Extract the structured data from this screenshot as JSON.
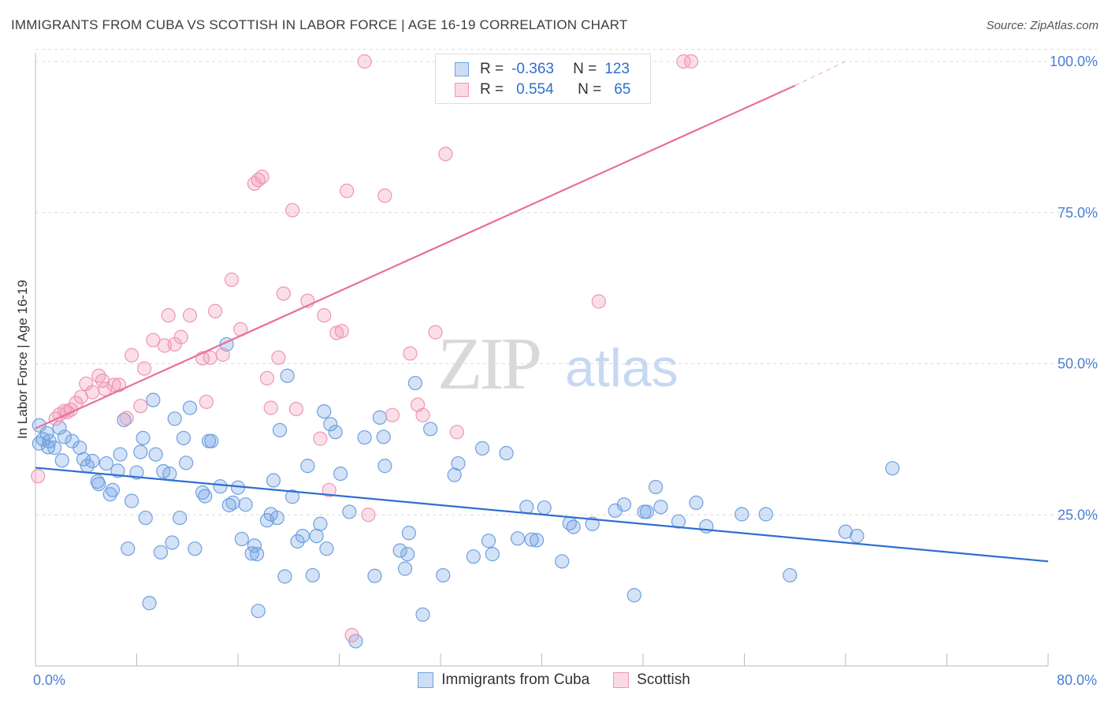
{
  "title": "IMMIGRANTS FROM CUBA VS SCOTTISH IN LABOR FORCE | AGE 16-19 CORRELATION CHART",
  "source": "Source: ZipAtlas.com",
  "watermark": {
    "zip": "ZIP",
    "atlas": "atlas"
  },
  "legend_top": {
    "rows": [
      {
        "r_label": "R =",
        "r_value": "-0.363",
        "n_label": "N =",
        "n_value": "123",
        "color": "#6fa0e0"
      },
      {
        "r_label": "R =",
        "r_value": "0.554",
        "n_label": "N =",
        "n_value": "65",
        "color": "#f095b5"
      }
    ]
  },
  "chart_data": {
    "type": "scatter",
    "xlabel": "",
    "ylabel": "In Labor Force | Age 16-19",
    "xlim": [
      0,
      80
    ],
    "ylim": [
      0,
      105
    ],
    "x_tick_labels": [
      "0.0%",
      "80.0%"
    ],
    "y_tick_labels": [
      "25.0%",
      "50.0%",
      "75.0%",
      "100.0%"
    ],
    "y_ticks": [
      25,
      50,
      75,
      100
    ],
    "grid": true,
    "legend_placement": "bottom",
    "series": [
      {
        "name": "Immigrants from Cuba",
        "color": "#6fa0e0",
        "fill": "rgba(110,160,230,0.30)",
        "trend": {
          "x0": 0,
          "y0": 32.8,
          "x1": 80,
          "y1": 17.3,
          "color": "#2f6fd0"
        },
        "points": [
          [
            0.3,
            36.8
          ],
          [
            0.6,
            37.5
          ],
          [
            0.9,
            38.5
          ],
          [
            1.1,
            37.2
          ],
          [
            1.5,
            36.1
          ],
          [
            1.9,
            39.4
          ],
          [
            2.3,
            37.9
          ],
          [
            2.9,
            37.2
          ],
          [
            3.5,
            36.1
          ],
          [
            3.8,
            34.2
          ],
          [
            4.1,
            33.1
          ],
          [
            4.5,
            33.9
          ],
          [
            4.9,
            30.5
          ],
          [
            5.0,
            30.1
          ],
          [
            5.6,
            33.5
          ],
          [
            5.9,
            28.4
          ],
          [
            6.1,
            29.1
          ],
          [
            6.5,
            32.3
          ],
          [
            6.7,
            35.0
          ],
          [
            7.0,
            40.7
          ],
          [
            7.3,
            19.4
          ],
          [
            7.6,
            27.3
          ],
          [
            8.0,
            32.0
          ],
          [
            8.3,
            35.4
          ],
          [
            8.5,
            37.7
          ],
          [
            8.7,
            24.5
          ],
          [
            9.0,
            10.4
          ],
          [
            9.3,
            44.0
          ],
          [
            9.5,
            35.0
          ],
          [
            9.9,
            18.8
          ],
          [
            10.1,
            32.2
          ],
          [
            10.6,
            31.8
          ],
          [
            10.8,
            20.4
          ],
          [
            11.0,
            40.9
          ],
          [
            11.4,
            24.5
          ],
          [
            11.7,
            37.7
          ],
          [
            11.9,
            33.6
          ],
          [
            12.2,
            42.7
          ],
          [
            12.6,
            19.4
          ],
          [
            13.2,
            28.7
          ],
          [
            13.4,
            28.1
          ],
          [
            13.7,
            37.2
          ],
          [
            13.9,
            37.2
          ],
          [
            14.6,
            29.7
          ],
          [
            15.1,
            53.2
          ],
          [
            15.3,
            26.6
          ],
          [
            15.6,
            27.0
          ],
          [
            16.0,
            29.5
          ],
          [
            16.3,
            21.0
          ],
          [
            16.6,
            26.7
          ],
          [
            17.1,
            18.6
          ],
          [
            17.3,
            19.9
          ],
          [
            17.5,
            18.5
          ],
          [
            17.6,
            9.1
          ],
          [
            18.3,
            24.1
          ],
          [
            18.6,
            25.1
          ],
          [
            18.8,
            30.7
          ],
          [
            19.1,
            24.5
          ],
          [
            19.3,
            39.0
          ],
          [
            19.7,
            14.8
          ],
          [
            19.9,
            48.0
          ],
          [
            20.3,
            28.0
          ],
          [
            20.7,
            20.6
          ],
          [
            21.1,
            21.5
          ],
          [
            21.5,
            33.1
          ],
          [
            21.9,
            15.0
          ],
          [
            22.2,
            21.5
          ],
          [
            22.5,
            23.5
          ],
          [
            22.8,
            42.1
          ],
          [
            23.0,
            19.4
          ],
          [
            23.3,
            40.0
          ],
          [
            23.7,
            38.7
          ],
          [
            24.1,
            31.8
          ],
          [
            24.8,
            25.5
          ],
          [
            25.3,
            4.1
          ],
          [
            26.0,
            37.8
          ],
          [
            26.8,
            14.9
          ],
          [
            27.2,
            41.1
          ],
          [
            27.5,
            37.9
          ],
          [
            27.6,
            33.1
          ],
          [
            28.8,
            19.1
          ],
          [
            29.2,
            16.1
          ],
          [
            29.4,
            18.5
          ],
          [
            29.5,
            22.0
          ],
          [
            30.0,
            46.8
          ],
          [
            30.6,
            8.5
          ],
          [
            31.2,
            39.2
          ],
          [
            32.2,
            15.0
          ],
          [
            33.1,
            31.6
          ],
          [
            33.4,
            33.5
          ],
          [
            34.6,
            18.1
          ],
          [
            35.3,
            36.0
          ],
          [
            35.8,
            20.7
          ],
          [
            36.1,
            18.5
          ],
          [
            37.2,
            35.2
          ],
          [
            38.1,
            21.1
          ],
          [
            38.8,
            26.3
          ],
          [
            39.2,
            20.9
          ],
          [
            39.6,
            20.8
          ],
          [
            40.2,
            26.2
          ],
          [
            41.6,
            17.3
          ],
          [
            42.2,
            23.6
          ],
          [
            42.5,
            23.0
          ],
          [
            44.0,
            23.5
          ],
          [
            45.8,
            25.7
          ],
          [
            46.5,
            26.7
          ],
          [
            47.3,
            11.7
          ],
          [
            48.1,
            25.5
          ],
          [
            48.3,
            25.5
          ],
          [
            49.0,
            29.6
          ],
          [
            49.4,
            26.3
          ],
          [
            50.8,
            23.9
          ],
          [
            52.2,
            27.0
          ],
          [
            53.0,
            23.1
          ],
          [
            55.8,
            25.1
          ],
          [
            57.7,
            25.1
          ],
          [
            59.6,
            15.0
          ],
          [
            64.0,
            22.2
          ],
          [
            64.9,
            21.5
          ],
          [
            67.7,
            32.7
          ],
          [
            0.3,
            39.8
          ],
          [
            1.0,
            36.2
          ],
          [
            2.1,
            34.0
          ]
        ]
      },
      {
        "name": "Scottish",
        "color": "#f095b5",
        "fill": "rgba(240,150,180,0.30)",
        "trend": {
          "x0": 0,
          "y0": 39.3,
          "x1": 60.0,
          "y1": 96.0,
          "color": "#e8709a"
        },
        "trend_dashed": {
          "x0": 60.0,
          "y0": 96.0,
          "x1": 64.0,
          "y1": 100.0
        },
        "points": [
          [
            0.2,
            31.4
          ],
          [
            1.6,
            40.9
          ],
          [
            1.9,
            41.6
          ],
          [
            2.3,
            42.2
          ],
          [
            2.5,
            42.0
          ],
          [
            2.8,
            42.4
          ],
          [
            3.2,
            43.5
          ],
          [
            3.6,
            44.5
          ],
          [
            4.0,
            46.7
          ],
          [
            4.5,
            45.3
          ],
          [
            5.0,
            48.0
          ],
          [
            5.3,
            47.2
          ],
          [
            5.5,
            45.8
          ],
          [
            6.2,
            46.5
          ],
          [
            6.6,
            46.5
          ],
          [
            7.2,
            41.0
          ],
          [
            7.6,
            51.4
          ],
          [
            8.3,
            43.0
          ],
          [
            8.6,
            49.2
          ],
          [
            9.3,
            53.9
          ],
          [
            10.2,
            53.0
          ],
          [
            10.5,
            58.0
          ],
          [
            11.0,
            53.2
          ],
          [
            11.5,
            54.4
          ],
          [
            12.2,
            58.0
          ],
          [
            13.2,
            50.9
          ],
          [
            13.5,
            43.7
          ],
          [
            13.8,
            51.0
          ],
          [
            14.2,
            58.7
          ],
          [
            14.8,
            51.5
          ],
          [
            15.5,
            63.9
          ],
          [
            16.2,
            55.7
          ],
          [
            17.3,
            79.8
          ],
          [
            17.6,
            80.4
          ],
          [
            17.9,
            80.9
          ],
          [
            18.3,
            47.6
          ],
          [
            18.6,
            42.7
          ],
          [
            19.2,
            51.0
          ],
          [
            19.6,
            61.6
          ],
          [
            20.3,
            75.4
          ],
          [
            20.6,
            42.5
          ],
          [
            21.5,
            60.4
          ],
          [
            22.5,
            37.6
          ],
          [
            22.8,
            58.0
          ],
          [
            23.2,
            29.1
          ],
          [
            23.8,
            55.1
          ],
          [
            24.2,
            55.4
          ],
          [
            24.6,
            78.6
          ],
          [
            25.0,
            5.1
          ],
          [
            26.0,
            100.0
          ],
          [
            26.3,
            25.0
          ],
          [
            27.6,
            77.8
          ],
          [
            28.2,
            41.5
          ],
          [
            29.6,
            51.7
          ],
          [
            30.2,
            43.2
          ],
          [
            30.6,
            41.5
          ],
          [
            31.6,
            55.2
          ],
          [
            32.4,
            84.7
          ],
          [
            33.3,
            38.7
          ],
          [
            38.0,
            100.0
          ],
          [
            34.6,
            100.0
          ],
          [
            44.5,
            60.3
          ],
          [
            51.2,
            100.0
          ],
          [
            51.8,
            100.0
          ],
          [
            43.0,
            100.0
          ]
        ]
      }
    ]
  },
  "bottom_legend": [
    {
      "label": "Immigrants from Cuba",
      "color": "#6fa0e0"
    },
    {
      "label": "Scottish",
      "color": "#f095b5"
    }
  ]
}
